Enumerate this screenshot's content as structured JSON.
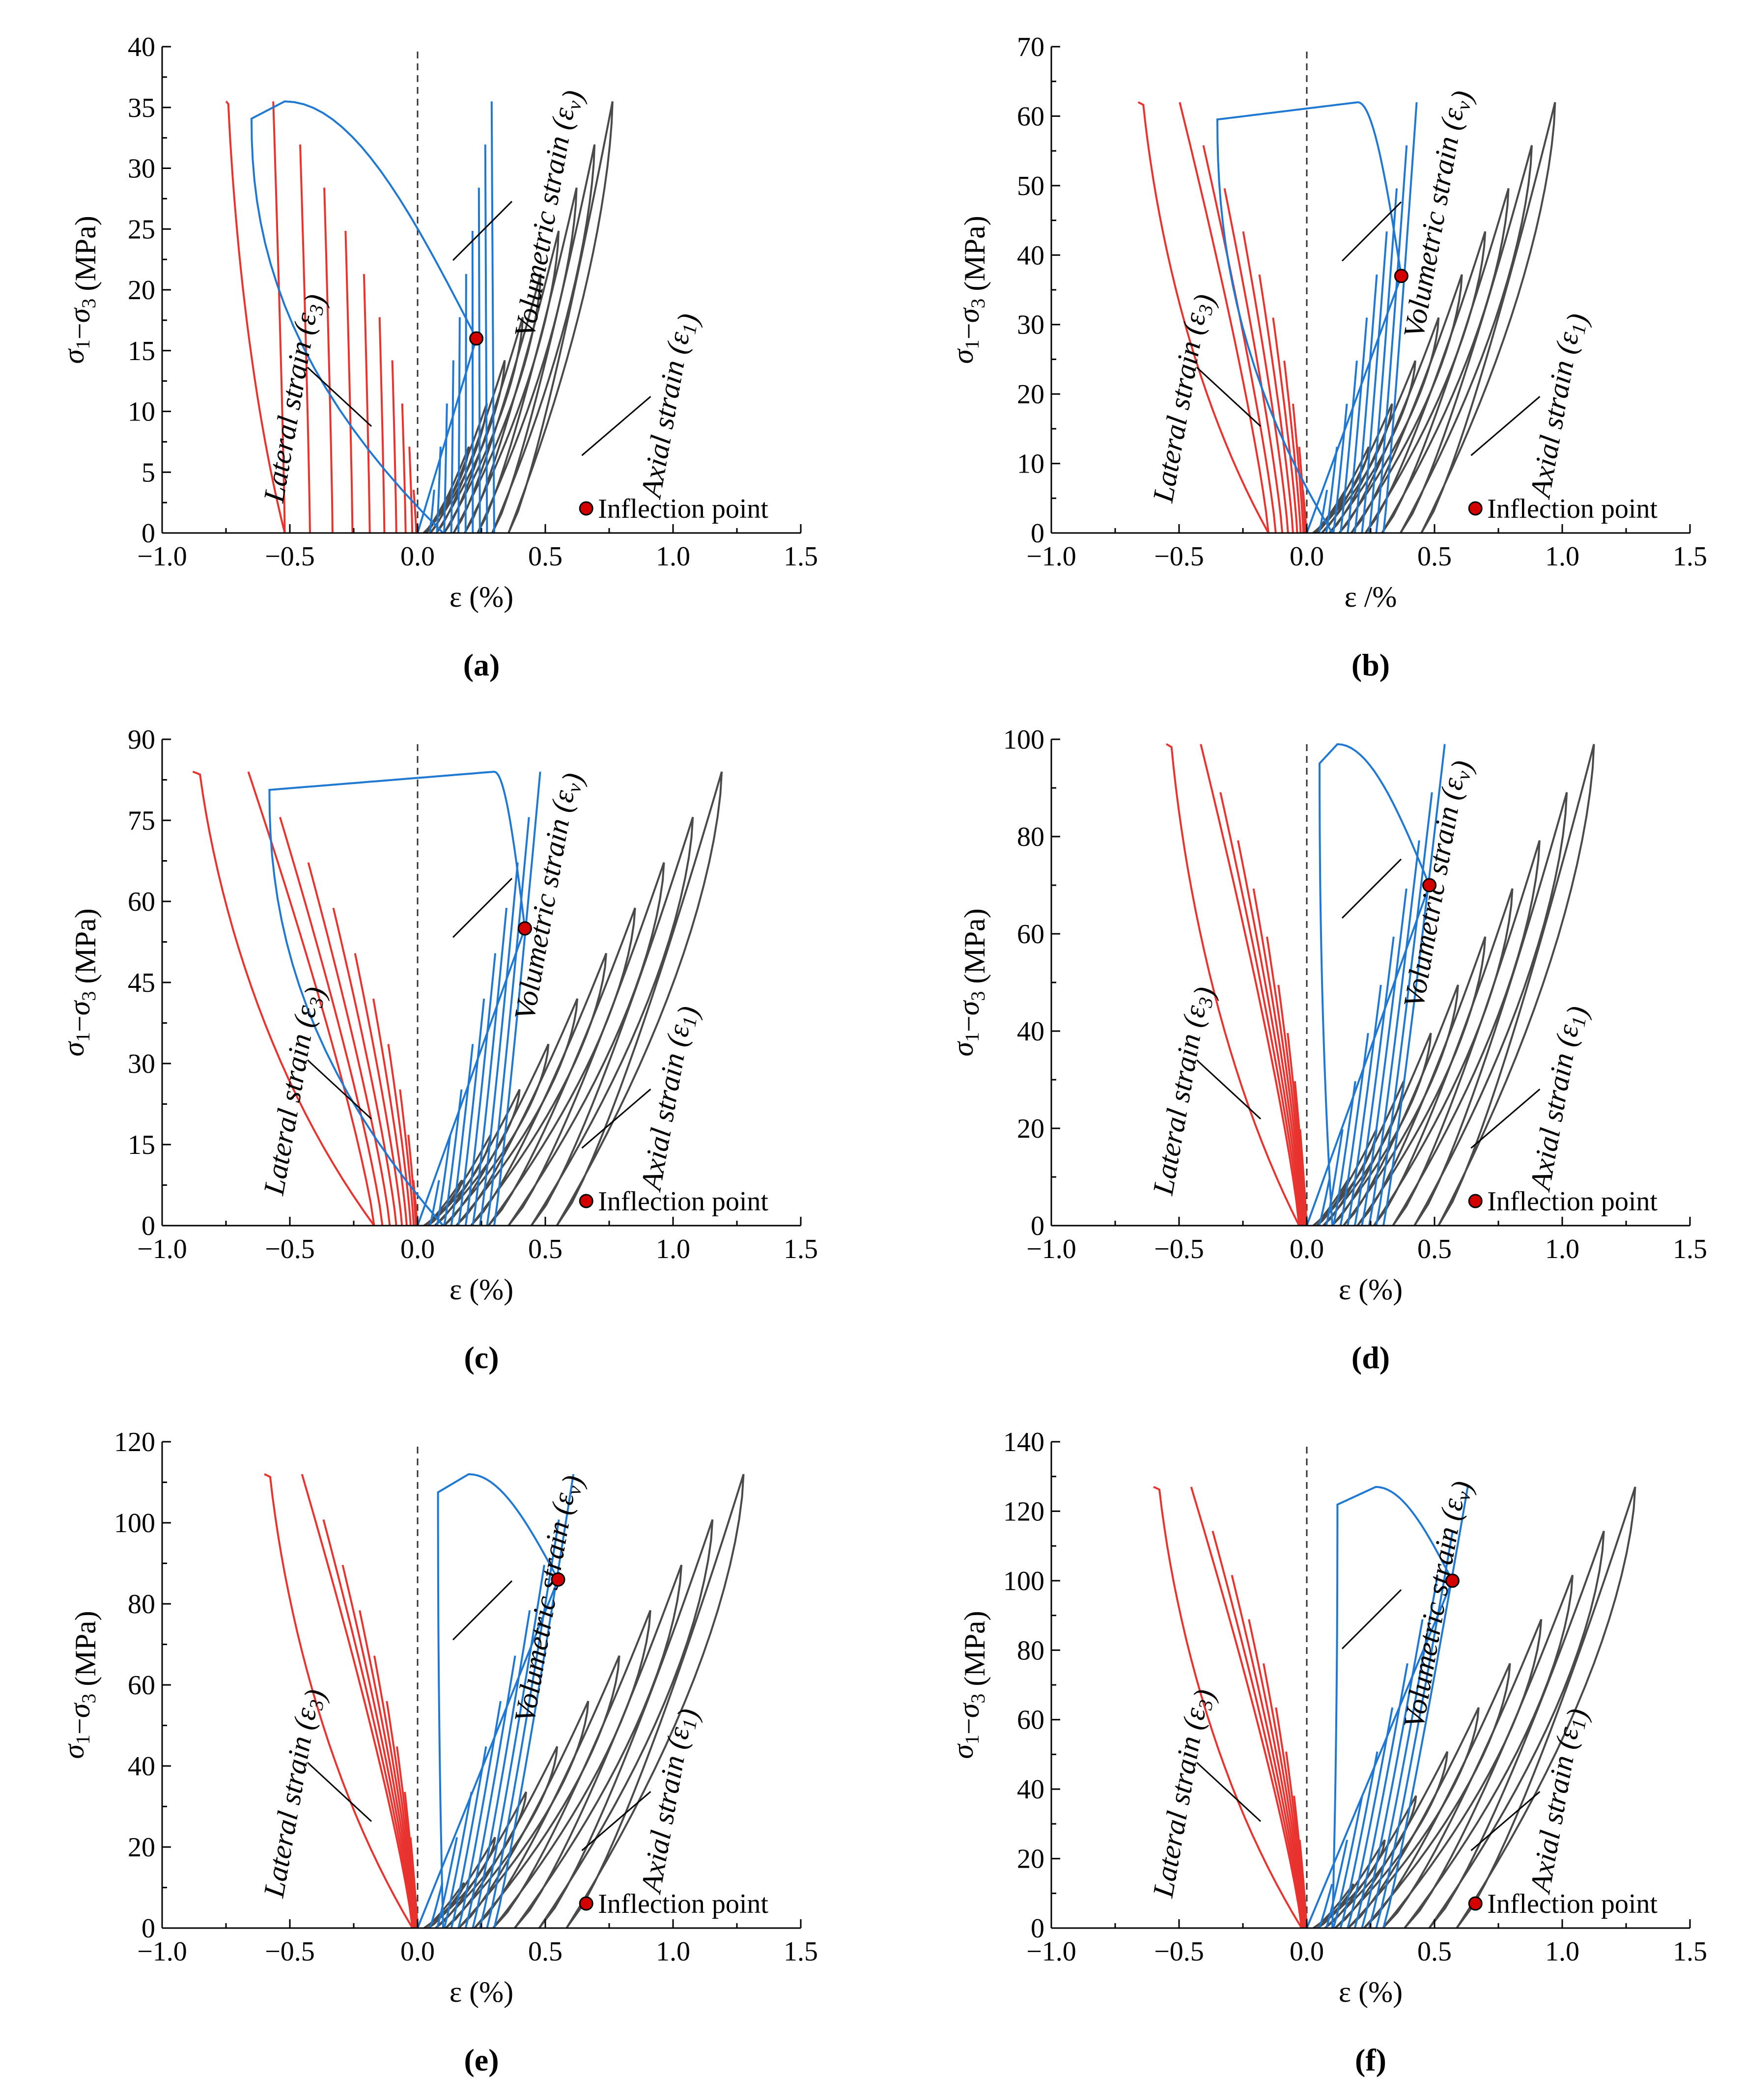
{
  "figure": {
    "colors": {
      "lateral": "#e8332f",
      "volumetric": "#1f78d1",
      "axial": "#4a4a4a",
      "point": "#d40000"
    },
    "ylabel": "σ1−σ3 (MPa)"
  },
  "chart_data": [
    {
      "type": "line",
      "panel": "(a)",
      "xlabel": "ε (%)",
      "ylabel": "σ1−σ3 (MPa)",
      "xlim": [
        -1.0,
        1.5
      ],
      "ylim": [
        0,
        40
      ],
      "xticks": [
        "−1.0",
        "−0.5",
        "0.0",
        "0.5",
        "1.0",
        "1.5"
      ],
      "yticks": [
        "0",
        "5",
        "10",
        "15",
        "20",
        "25",
        "30",
        "35",
        "40"
      ],
      "peak": 35.5,
      "lat_end": -0.75,
      "lat_start": -0.52,
      "vol_start": -0.65,
      "vol_peak": -0.52,
      "ax_peak": 0.8,
      "inflection_point": {
        "x": 0.23,
        "y": 16,
        "label": "Inflection point"
      },
      "series_labels": {
        "lateral": "Lateral strain (ε3)",
        "volumetric": "Volumetric strain (εv)",
        "axial": "Axial strain (ε1)"
      }
    },
    {
      "type": "line",
      "panel": "(b)",
      "xlabel": "ε /%",
      "ylabel": "σ1−σ3 (MPa)",
      "xlim": [
        -1.0,
        1.5
      ],
      "ylim": [
        0,
        70
      ],
      "xticks": [
        "−1.0",
        "−0.5",
        "0.0",
        "0.5",
        "1.0",
        "1.5"
      ],
      "yticks": [
        "0",
        "10",
        "20",
        "30",
        "40",
        "50",
        "60",
        "70"
      ],
      "peak": 62,
      "lat_end": -0.66,
      "lat_start": -0.15,
      "vol_start": -0.35,
      "vol_peak": 0.2,
      "ax_peak": 1.02,
      "inflection_point": {
        "x": 0.37,
        "y": 37,
        "label": "Inflection point"
      },
      "series_labels": {
        "lateral": "Lateral strain (ε3)",
        "volumetric": "Volumetric strain (εv)",
        "axial": "Axial strain (ε1)"
      }
    },
    {
      "type": "line",
      "panel": "(c)",
      "xlabel": "ε (%)",
      "ylabel": "σ1−σ3 (MPa)",
      "xlim": [
        -1.0,
        1.5
      ],
      "ylim": [
        0,
        90
      ],
      "xticks": [
        "−1.0",
        "−0.5",
        "0.0",
        "0.5",
        "1.0",
        "1.5"
      ],
      "yticks": [
        "0",
        "15",
        "30",
        "45",
        "60",
        "75",
        "90"
      ],
      "peak": 84,
      "lat_end": -0.88,
      "lat_start": -0.17,
      "vol_start": -0.58,
      "vol_peak": 0.3,
      "ax_peak": 1.25,
      "inflection_point": {
        "x": 0.42,
        "y": 55,
        "label": "Inflection point"
      },
      "series_labels": {
        "lateral": "Lateral strain (ε3)",
        "volumetric": "Volumetric strain (εv)",
        "axial": "Axial strain (ε1)"
      }
    },
    {
      "type": "line",
      "panel": "(d)",
      "xlabel": "ε (%)",
      "ylabel": "σ1−σ3 (MPa)",
      "xlim": [
        -1.0,
        1.5
      ],
      "ylim": [
        0,
        100
      ],
      "xticks": [
        "−1.0",
        "−0.5",
        "0.0",
        "0.5",
        "1.0",
        "1.5"
      ],
      "yticks": [
        "0",
        "20",
        "40",
        "60",
        "80",
        "100"
      ],
      "peak": 99,
      "lat_end": -0.55,
      "lat_start": -0.03,
      "vol_start": 0.05,
      "vol_peak": 0.12,
      "ax_peak": 1.18,
      "inflection_point": {
        "x": 0.48,
        "y": 70,
        "label": "Inflection point"
      },
      "series_labels": {
        "lateral": "Lateral strain (ε3)",
        "volumetric": "Volumetric strain (εv)",
        "axial": "Axial strain (ε1)"
      }
    },
    {
      "type": "line",
      "panel": "(e)",
      "xlabel": "ε (%)",
      "ylabel": "σ1−σ3 (MPa)",
      "xlim": [
        -1.0,
        1.5
      ],
      "ylim": [
        0,
        120
      ],
      "xticks": [
        "−1.0",
        "−0.5",
        "0.0",
        "0.5",
        "1.0",
        "1.5"
      ],
      "yticks": [
        "0",
        "20",
        "40",
        "60",
        "80",
        "100",
        "120"
      ],
      "peak": 112,
      "lat_end": -0.6,
      "lat_start": -0.02,
      "vol_start": 0.08,
      "vol_peak": 0.2,
      "ax_peak": 1.34,
      "inflection_point": {
        "x": 0.55,
        "y": 86,
        "label": "Inflection point"
      },
      "series_labels": {
        "lateral": "Lateral strain (ε3)",
        "volumetric": "Volumetric strain (εv)",
        "axial": "Axial strain (ε1)"
      }
    },
    {
      "type": "line",
      "panel": "(f)",
      "xlabel": "ε (%)",
      "ylabel": "σ1−σ3 (MPa)",
      "xlim": [
        -1.0,
        1.5
      ],
      "ylim": [
        0,
        140
      ],
      "xticks": [
        "−1.0",
        "−0.5",
        "0.0",
        "0.5",
        "1.0",
        "1.5"
      ],
      "yticks": [
        "0",
        "20",
        "40",
        "60",
        "80",
        "100",
        "120",
        "140"
      ],
      "peak": 127,
      "lat_end": -0.6,
      "lat_start": -0.02,
      "vol_start": 0.12,
      "vol_peak": 0.27,
      "ax_peak": 1.35,
      "inflection_point": {
        "x": 0.57,
        "y": 100,
        "label": "Inflection point"
      },
      "series_labels": {
        "lateral": "Lateral strain (ε3)",
        "volumetric": "Volumetric strain (εv)",
        "axial": "Axial strain (ε1)"
      }
    }
  ]
}
